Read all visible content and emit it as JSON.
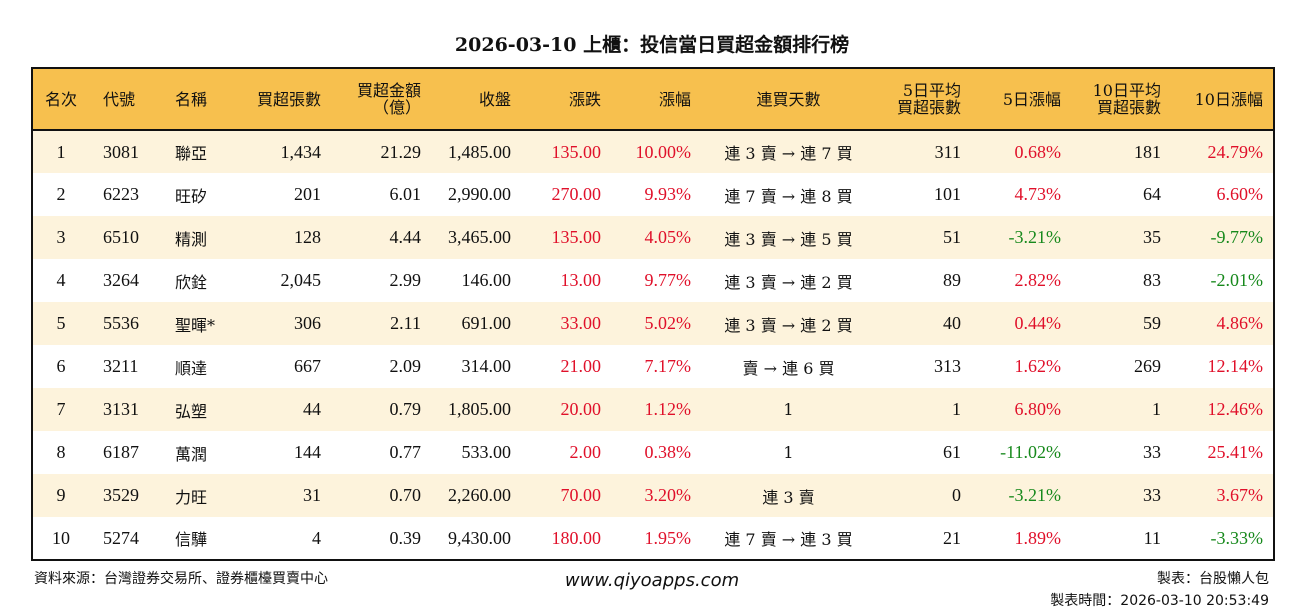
{
  "title": "2026-03-10 上櫃：投信當日買超金額排行榜",
  "colors": {
    "header_bg": "#f7c04e",
    "row_odd": "#fdf3dc",
    "up": "#e0102a",
    "down": "#17891c"
  },
  "headers": [
    "名次",
    "代號",
    "名稱",
    "買超張數",
    "買超金額\n（億）",
    "收盤",
    "漲跌",
    "漲幅",
    "連買天數",
    "5日平均\n買超張數",
    "5日漲幅",
    "10日平均\n買超張數",
    "10日漲幅"
  ],
  "rows": [
    [
      "1",
      "3081",
      "聯亞",
      "1,434",
      "21.29",
      "1,485.00",
      "135.00",
      "10.00%",
      "連 3 賣 → 連 7 買",
      "311",
      "0.68%",
      "181",
      "24.79%"
    ],
    [
      "2",
      "6223",
      "旺矽",
      "201",
      "6.01",
      "2,990.00",
      "270.00",
      "9.93%",
      "連 7 賣 → 連 8 買",
      "101",
      "4.73%",
      "64",
      "6.60%"
    ],
    [
      "3",
      "6510",
      "精測",
      "128",
      "4.44",
      "3,465.00",
      "135.00",
      "4.05%",
      "連 3 賣 → 連 5 買",
      "51",
      "-3.21%",
      "35",
      "-9.77%"
    ],
    [
      "4",
      "3264",
      "欣銓",
      "2,045",
      "2.99",
      "146.00",
      "13.00",
      "9.77%",
      "連 3 賣 → 連 2 買",
      "89",
      "2.82%",
      "83",
      "-2.01%"
    ],
    [
      "5",
      "5536",
      "聖暉*",
      "306",
      "2.11",
      "691.00",
      "33.00",
      "5.02%",
      "連 3 賣 → 連 2 買",
      "40",
      "0.44%",
      "59",
      "4.86%"
    ],
    [
      "6",
      "3211",
      "順達",
      "667",
      "2.09",
      "314.00",
      "21.00",
      "7.17%",
      "賣 → 連 6 買",
      "313",
      "1.62%",
      "269",
      "12.14%"
    ],
    [
      "7",
      "3131",
      "弘塑",
      "44",
      "0.79",
      "1,805.00",
      "20.00",
      "1.12%",
      "1",
      "1",
      "6.80%",
      "1",
      "12.46%"
    ],
    [
      "8",
      "6187",
      "萬潤",
      "144",
      "0.77",
      "533.00",
      "2.00",
      "0.38%",
      "1",
      "61",
      "-11.02%",
      "33",
      "25.41%"
    ],
    [
      "9",
      "3529",
      "力旺",
      "31",
      "0.70",
      "2,260.00",
      "70.00",
      "3.20%",
      "連 3 賣",
      "0",
      "-3.21%",
      "33",
      "3.67%"
    ],
    [
      "10",
      "5274",
      "信驊",
      "4",
      "0.39",
      "9,430.00",
      "180.00",
      "1.95%",
      "連 7 賣 → 連 3 買",
      "21",
      "1.89%",
      "11",
      "-3.33%"
    ]
  ],
  "footer": {
    "source": "資料來源：台灣證券交易所、證券櫃檯買賣中心",
    "site": "www.qiyoapps.com",
    "maker": "製表：台股懶人包",
    "time": "製表時間：2026-03-10 20:53:49"
  }
}
